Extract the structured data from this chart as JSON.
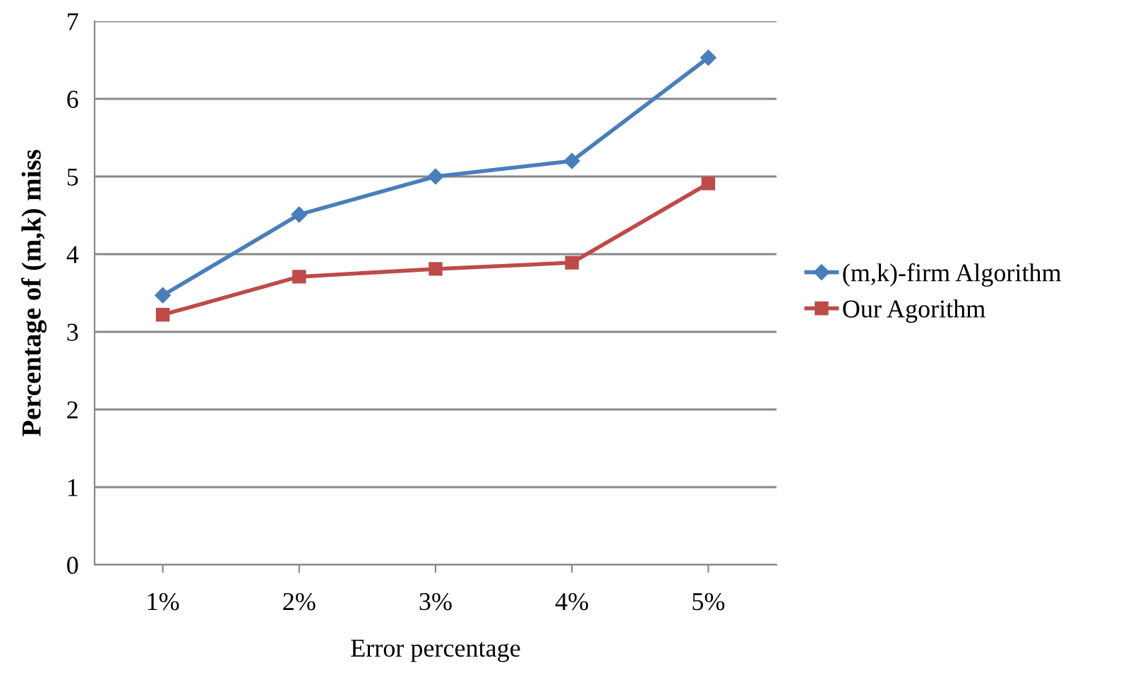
{
  "chart_data": {
    "type": "line",
    "xlabel": "Error percentage",
    "ylabel": "Percentage of (m,k) miss",
    "categories": [
      "1%",
      "2%",
      "3%",
      "4%",
      "5%"
    ],
    "series": [
      {
        "name": "(m,k)-firm Algorithm",
        "color": "#4a7ebb",
        "marker": "diamond",
        "values": [
          3.47,
          4.51,
          5.0,
          5.2,
          6.53
        ]
      },
      {
        "name": "Our Agorithm",
        "color": "#be4b48",
        "marker": "square",
        "values": [
          3.22,
          3.71,
          3.81,
          3.89,
          4.91
        ]
      }
    ],
    "ylim": [
      0,
      7
    ],
    "yticks": [
      0,
      1,
      2,
      3,
      4,
      5,
      6,
      7
    ],
    "grid": "y",
    "legend": "right",
    "line_style": "solid"
  }
}
